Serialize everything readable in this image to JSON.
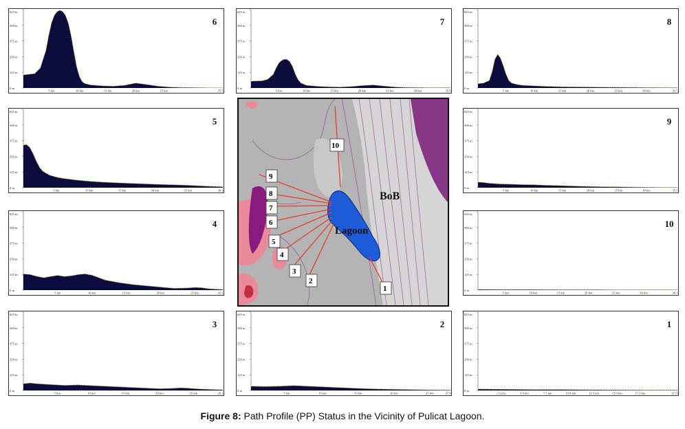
{
  "colors": {
    "fill": "#0c0c3c",
    "outline": "#d8d870",
    "land": "#b9b9b9",
    "lagoon": "#1e5bd8",
    "sea": "#cfcfcf",
    "hills": "#e98a9a",
    "deep": "#8a1b7e",
    "profile_line": "#e0402a"
  },
  "chart_data": [
    {
      "type": "area",
      "id": "6",
      "ylabels": [
        "0 m",
        "125 m",
        "250 m",
        "375 m",
        "500 m",
        "625 m"
      ],
      "ylim": [
        0,
        625
      ],
      "xmax": 35.5,
      "xticks": [
        [
          5,
          "5 km"
        ],
        [
          10,
          "10 km"
        ],
        [
          15,
          "15 km"
        ],
        [
          20,
          "20 km"
        ],
        [
          25,
          "25 km"
        ],
        [
          35.5,
          "35.5 km"
        ]
      ],
      "x": [
        0,
        2,
        3,
        4,
        4.5,
        5,
        5.5,
        6,
        6.5,
        7,
        7.5,
        8,
        8.5,
        9,
        9.5,
        10,
        10.5,
        11,
        12,
        14,
        16,
        18,
        20,
        22,
        24,
        26,
        28,
        30,
        32,
        34,
        35.5
      ],
      "y": [
        105,
        115,
        160,
        300,
        420,
        520,
        580,
        610,
        620,
        610,
        580,
        520,
        420,
        290,
        170,
        90,
        50,
        35,
        25,
        18,
        15,
        22,
        40,
        28,
        15,
        8,
        5,
        4,
        3,
        2,
        2
      ]
    },
    {
      "type": "area",
      "id": "7",
      "ylabels": [
        "0 m",
        "125 m",
        "250 m",
        "375 m",
        "500 m",
        "625 m"
      ],
      "ylim": [
        0,
        625
      ],
      "xmax": 35.9,
      "xticks": [
        [
          5,
          "5 km"
        ],
        [
          10,
          "10 km"
        ],
        [
          15,
          "15 km"
        ],
        [
          20,
          "20 km"
        ],
        [
          25,
          "25 km"
        ],
        [
          30,
          "30 km"
        ],
        [
          35.9,
          "35.9 km"
        ]
      ],
      "x": [
        0,
        2,
        3,
        4,
        4.5,
        5,
        5.5,
        6,
        6.5,
        7,
        7.5,
        8,
        8.5,
        9,
        10,
        12,
        14,
        16,
        18,
        20,
        22,
        24,
        26,
        28,
        30,
        32,
        35.9
      ],
      "y": [
        55,
        58,
        70,
        110,
        160,
        200,
        220,
        230,
        228,
        210,
        170,
        110,
        65,
        40,
        22,
        14,
        10,
        8,
        12,
        20,
        25,
        16,
        8,
        5,
        4,
        3,
        3
      ]
    },
    {
      "type": "area",
      "id": "8",
      "ylabels": [
        "0 m",
        "125 m",
        "250 m",
        "375 m",
        "500 m",
        "625 m"
      ],
      "ylim": [
        0,
        625
      ],
      "xmax": 35.5,
      "xticks": [
        [
          5,
          "5 km"
        ],
        [
          10,
          "10 km"
        ],
        [
          15,
          "15 km"
        ],
        [
          20,
          "20 km"
        ],
        [
          25,
          "25 km"
        ],
        [
          30,
          "30 km"
        ],
        [
          35.5,
          "35.5 km"
        ]
      ],
      "x": [
        0,
        1,
        2,
        2.5,
        3,
        3.5,
        4,
        4.5,
        5,
        5.5,
        6,
        7,
        8,
        10,
        12,
        15,
        20,
        25,
        30,
        35.5
      ],
      "y": [
        35,
        40,
        60,
        130,
        230,
        270,
        240,
        180,
        110,
        60,
        40,
        28,
        22,
        18,
        14,
        10,
        8,
        6,
        4,
        3
      ]
    },
    {
      "type": "area",
      "id": "5",
      "ylabels": [
        "0 m",
        "125 m",
        "250 m",
        "375 m",
        "500 m",
        "625 m"
      ],
      "ylim": [
        0,
        625
      ],
      "xmax": 30.3,
      "xticks": [
        [
          5,
          "5 km"
        ],
        [
          10,
          "10 km"
        ],
        [
          15,
          "15 km"
        ],
        [
          20,
          "20 km"
        ],
        [
          25,
          "25 km"
        ],
        [
          30.3,
          "30.3 km"
        ]
      ],
      "x": [
        0,
        0.5,
        1,
        1.5,
        2,
        2.5,
        3,
        4,
        5,
        6,
        8,
        10,
        12,
        15,
        18,
        20,
        22,
        25,
        28,
        30.3
      ],
      "y": [
        340,
        345,
        320,
        270,
        210,
        160,
        130,
        100,
        85,
        75,
        62,
        52,
        45,
        38,
        32,
        28,
        25,
        20,
        12,
        8
      ]
    },
    {
      "type": "area",
      "id": "9",
      "ylabels": [
        "0 m",
        "125 m",
        "250 m",
        "375 m",
        "500 m",
        "625 m"
      ],
      "ylim": [
        0,
        625
      ],
      "xmax": 35.5,
      "xticks": [
        [
          5,
          "5 km"
        ],
        [
          10,
          "10 km"
        ],
        [
          15,
          "15 km"
        ],
        [
          20,
          "20 km"
        ],
        [
          25,
          "25 km"
        ],
        [
          30,
          "30 km"
        ],
        [
          35.5,
          "35.5 km"
        ]
      ],
      "x": [
        0,
        1,
        2,
        4,
        6,
        8,
        10,
        12,
        14,
        16,
        18,
        20,
        22,
        25,
        28,
        30,
        33,
        35.5
      ],
      "y": [
        45,
        42,
        36,
        30,
        28,
        25,
        24,
        20,
        18,
        15,
        12,
        10,
        8,
        7,
        5,
        4,
        3,
        3
      ]
    },
    {
      "type": "area",
      "id": "4",
      "ylabels": [
        "0 m",
        "125 m",
        "250 m",
        "375 m",
        "500 m",
        "625 m"
      ],
      "ylim": [
        0,
        625
      ],
      "xmax": 29.1,
      "xticks": [
        [
          5,
          "5 km"
        ],
        [
          10,
          "10 km"
        ],
        [
          15,
          "15 km"
        ],
        [
          20,
          "20 km"
        ],
        [
          25,
          "25 km"
        ],
        [
          29.1,
          "29.1 km"
        ]
      ],
      "x": [
        0,
        1,
        2,
        3,
        4,
        5,
        6,
        7,
        8,
        9,
        10,
        11,
        12,
        14,
        16,
        18,
        20,
        22,
        24,
        25,
        26,
        27,
        28,
        29.1
      ],
      "y": [
        130,
        125,
        110,
        100,
        110,
        118,
        110,
        115,
        125,
        130,
        120,
        100,
        80,
        60,
        45,
        35,
        25,
        15,
        18,
        22,
        20,
        12,
        8,
        6
      ]
    },
    {
      "type": "area",
      "id": "10",
      "ylabels": [
        "0 m",
        "125 m",
        "250 m",
        "375 m",
        "500 m",
        "625 m"
      ],
      "ylim": [
        0,
        625
      ],
      "xmax": 36.1,
      "xticks": [
        [
          5,
          "5 km"
        ],
        [
          10,
          "10 km"
        ],
        [
          15,
          "15 km"
        ],
        [
          20,
          "20 km"
        ],
        [
          25,
          "25 km"
        ],
        [
          30,
          "30 km"
        ],
        [
          36.1,
          "36.1 km"
        ]
      ],
      "x": [
        0,
        5,
        10,
        15,
        20,
        25,
        30,
        36.1
      ],
      "y": [
        6,
        5,
        5,
        4,
        4,
        3,
        3,
        3
      ]
    },
    {
      "type": "area",
      "id": "3",
      "ylabels": [
        "0 m",
        "125 m",
        "250 m",
        "375 m",
        "500 m",
        "625 m"
      ],
      "ylim": [
        0,
        625
      ],
      "xmax": 29.3,
      "xticks": [
        [
          5,
          "5 km"
        ],
        [
          10,
          "10 km"
        ],
        [
          15,
          "15 km"
        ],
        [
          20,
          "20 km"
        ],
        [
          25,
          "25 km"
        ],
        [
          29.3,
          "29.3 km"
        ]
      ],
      "x": [
        0,
        1,
        2,
        4,
        6,
        8,
        10,
        12,
        14,
        16,
        18,
        20,
        22,
        23,
        24,
        25,
        26,
        28,
        29.3
      ],
      "y": [
        55,
        60,
        55,
        48,
        42,
        45,
        40,
        35,
        30,
        25,
        20,
        15,
        18,
        22,
        20,
        16,
        12,
        8,
        6
      ]
    },
    {
      "type": "area",
      "id": "2",
      "ylabels": [
        "0 m",
        "125 m",
        "250 m",
        "375 m",
        "500 m",
        "625 m"
      ],
      "ylim": [
        0,
        625
      ],
      "xmax": 27.9,
      "xticks": [
        [
          5,
          "5 km"
        ],
        [
          10,
          "10 km"
        ],
        [
          15,
          "15 km"
        ],
        [
          20,
          "20 km"
        ],
        [
          25,
          "25 km"
        ],
        [
          27.9,
          "27.9 km"
        ]
      ],
      "x": [
        0,
        2,
        4,
        6,
        8,
        10,
        12,
        14,
        16,
        18,
        20,
        22,
        24,
        26,
        27.9
      ],
      "y": [
        35,
        32,
        35,
        40,
        35,
        30,
        25,
        20,
        15,
        12,
        10,
        8,
        6,
        5,
        4
      ]
    },
    {
      "type": "area",
      "id": "1",
      "ylabels": [
        "0 m",
        "125 m",
        "250 m",
        "375 m",
        "500 m",
        "625 m"
      ],
      "ylim": [
        0,
        625
      ],
      "xmax": 21.51,
      "xticks": [
        [
          2.5,
          "2.5 km"
        ],
        [
          5,
          "5.0 km"
        ],
        [
          7.5,
          "7.5 km"
        ],
        [
          10,
          "10.0 km"
        ],
        [
          12.5,
          "12.5 km"
        ],
        [
          15,
          "15.0 km"
        ],
        [
          17.5,
          "17.5 km"
        ],
        [
          21.51,
          "21.51 km"
        ]
      ],
      "x": [
        0,
        3,
        6,
        9,
        12,
        15,
        18,
        21.51
      ],
      "y": [
        12,
        10,
        8,
        8,
        6,
        5,
        4,
        4
      ]
    }
  ],
  "map": {
    "sea_label": "BoB",
    "lagoon_label": "Lagoon",
    "path_numbers": [
      "1",
      "2",
      "3",
      "4",
      "5",
      "6",
      "7",
      "8",
      "9",
      "10"
    ]
  },
  "caption": {
    "prefix": "Figure 8:",
    "text": " Path Profile (PP) Status in the Vicinity of Pulicat Lagoon."
  }
}
